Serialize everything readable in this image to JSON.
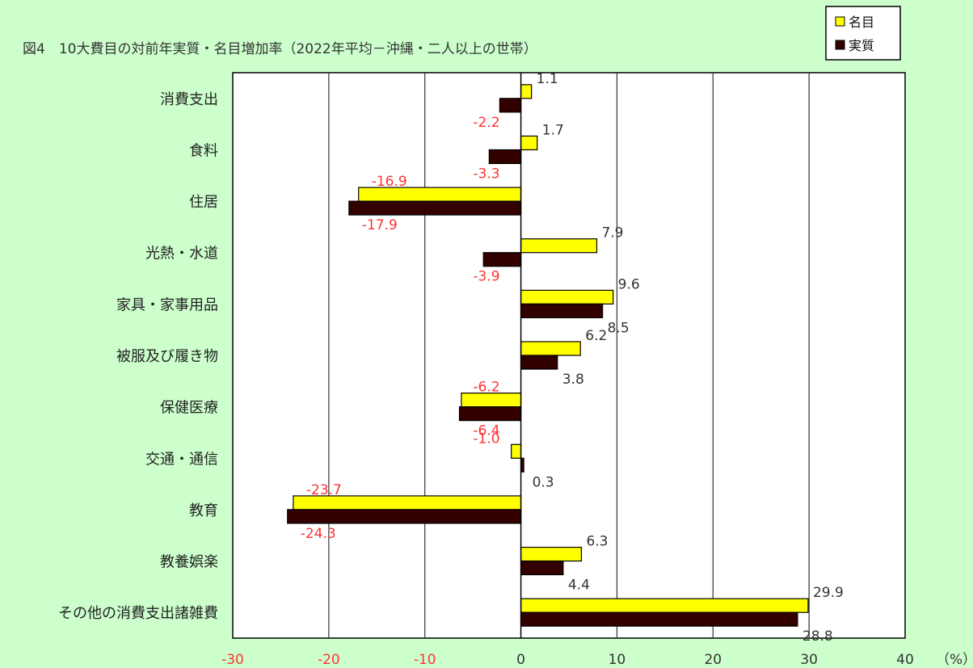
{
  "chart_data": {
    "type": "bar",
    "orientation": "horizontal",
    "title": "図4　10大費目の対前年実質・名目増加率（2022年平均－沖縄・二人以上の世帯）",
    "unit": "（%）",
    "categories": [
      "消費支出",
      "食料",
      "住居",
      "光熱・水道",
      "家具・家事用品",
      "被服及び履き物",
      "保健医療",
      "交通・通信",
      "教育",
      "教養娯楽",
      "その他の消費支出諸雑費"
    ],
    "series": [
      {
        "name": "名目",
        "values": [
          1.1,
          1.7,
          -16.9,
          7.9,
          9.6,
          6.2,
          -6.2,
          -1.0,
          -23.7,
          6.3,
          29.9
        ]
      },
      {
        "name": "実質",
        "values": [
          -2.2,
          -3.3,
          -17.9,
          -3.9,
          8.5,
          3.8,
          -6.4,
          0.3,
          -24.3,
          4.4,
          28.8
        ]
      }
    ],
    "value_labels": {
      "名目": [
        "1.1",
        "1.7",
        "-16.9",
        "7.9",
        "9.6",
        "6.2",
        "-6.2",
        "-1.0",
        "-23.7",
        "6.3",
        "29.9"
      ],
      "実質": [
        "-2.2",
        "-3.3",
        "-17.9",
        "-3.9",
        "8.5",
        "3.8",
        "-6.4",
        "0.3",
        "-24.3",
        "4.4",
        "28.8"
      ]
    },
    "xlim": [
      -30,
      40
    ],
    "xticks": [
      -30,
      -20,
      -10,
      0,
      10,
      20,
      30,
      40
    ],
    "xtick_labels": [
      "-30",
      "-20",
      "-10",
      "0",
      "10",
      "20",
      "30",
      "40"
    ],
    "grid": true,
    "legend_position": "top-right",
    "colors": {
      "名目": "#ffff00",
      "実質": "#330000",
      "negative_label": "#ff3333",
      "positive_label": "#333333",
      "background": "#ccffcc",
      "plot_background": "#ffffff",
      "grid": "#333333"
    }
  }
}
